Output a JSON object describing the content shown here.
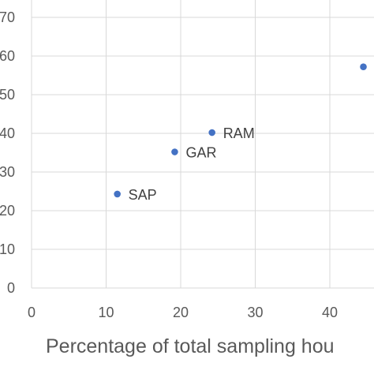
{
  "chart_data": {
    "type": "scatter",
    "title": "",
    "xlabel": "Percentage of total sampling hou",
    "ylabel": "",
    "xlim": [
      0,
      45
    ],
    "ylim": [
      0,
      70
    ],
    "x_ticks": [
      0,
      10,
      20,
      30,
      40
    ],
    "y_ticks": [
      0,
      10,
      20,
      30,
      40,
      50,
      60,
      70
    ],
    "y_tick_labels": [
      "0",
      "10",
      "20",
      "30",
      "40",
      "50",
      "60",
      "70"
    ],
    "grid": true,
    "series": [
      {
        "color": "#4472c4",
        "points": [
          {
            "x": 11.5,
            "y": 24.3,
            "label": "SAP"
          },
          {
            "x": 19.2,
            "y": 35.2,
            "label": "GAR"
          },
          {
            "x": 24.2,
            "y": 40.2,
            "label": "RAM"
          },
          {
            "x": 44.5,
            "y": 57.2,
            "label": ""
          }
        ]
      }
    ]
  }
}
